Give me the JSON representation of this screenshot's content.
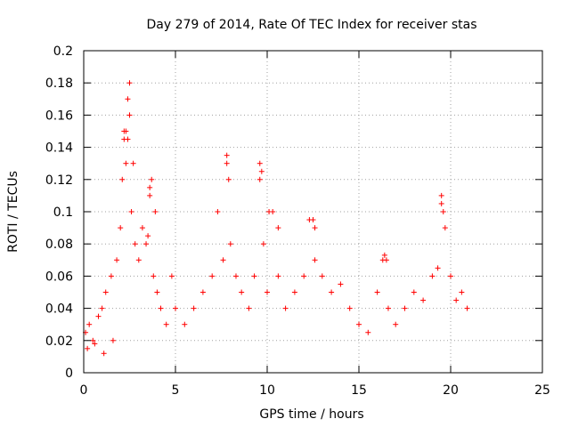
{
  "chart_data": {
    "type": "scatter",
    "title": "Day 279 of 2014, Rate Of TEC Index for receiver stas",
    "xlabel": "GPS time / hours",
    "ylabel": "ROTI / TECUs",
    "xlim": [
      0,
      25
    ],
    "ylim": [
      0,
      0.2
    ],
    "xticks": [
      "0",
      "5",
      "10",
      "15",
      "20",
      "25"
    ],
    "yticks": [
      "0",
      "0.02",
      "0.04",
      "0.06",
      "0.08",
      "0.1",
      "0.12",
      "0.14",
      "0.16",
      "0.18",
      "0.2"
    ],
    "grid": true,
    "marker": "+",
    "color": "#ff0000",
    "series": [
      {
        "name": "ROTI",
        "x": [
          0.1,
          0.3,
          0.5,
          0.8,
          1.0,
          1.2,
          1.5,
          1.8,
          2.0,
          2.1,
          2.2,
          2.3,
          2.4,
          2.5,
          2.6,
          2.8,
          3.0,
          3.2,
          3.4,
          3.6,
          3.8,
          4.0,
          4.2,
          4.5,
          4.8,
          5.0,
          5.5,
          6.0,
          6.5,
          7.0,
          7.3,
          7.6,
          7.8,
          8.0,
          8.3,
          8.6,
          9.0,
          9.3,
          9.6,
          9.8,
          10.0,
          10.3,
          10.6,
          11.0,
          11.5,
          12.0,
          12.3,
          12.6,
          13.0,
          13.5,
          14.0,
          14.5,
          15.0,
          15.5,
          16.0,
          16.3,
          16.6,
          17.0,
          17.5,
          18.0,
          18.5,
          19.0,
          19.3,
          19.5,
          19.7,
          20.0,
          20.3,
          20.6,
          20.9,
          0.2,
          0.6,
          1.1,
          1.6,
          2.3,
          2.5,
          2.7,
          3.6,
          3.7,
          3.9,
          7.8,
          7.9,
          9.6,
          9.7,
          10.1,
          10.6,
          12.5,
          12.6,
          19.5,
          19.6,
          2.2,
          2.4,
          3.5,
          16.4,
          16.5
        ],
        "y": [
          0.025,
          0.03,
          0.02,
          0.035,
          0.04,
          0.05,
          0.06,
          0.07,
          0.09,
          0.12,
          0.15,
          0.13,
          0.17,
          0.18,
          0.1,
          0.08,
          0.07,
          0.09,
          0.08,
          0.11,
          0.06,
          0.05,
          0.04,
          0.03,
          0.06,
          0.04,
          0.03,
          0.04,
          0.05,
          0.06,
          0.1,
          0.07,
          0.13,
          0.08,
          0.06,
          0.05,
          0.04,
          0.06,
          0.12,
          0.08,
          0.05,
          0.1,
          0.06,
          0.04,
          0.05,
          0.06,
          0.095,
          0.07,
          0.06,
          0.05,
          0.055,
          0.04,
          0.03,
          0.025,
          0.05,
          0.07,
          0.04,
          0.03,
          0.04,
          0.05,
          0.045,
          0.06,
          0.065,
          0.11,
          0.09,
          0.06,
          0.045,
          0.05,
          0.04,
          0.015,
          0.018,
          0.012,
          0.02,
          0.15,
          0.16,
          0.13,
          0.115,
          0.12,
          0.1,
          0.135,
          0.12,
          0.13,
          0.125,
          0.1,
          0.09,
          0.095,
          0.09,
          0.105,
          0.1,
          0.145,
          0.145,
          0.085,
          0.073,
          0.07
        ]
      }
    ]
  }
}
